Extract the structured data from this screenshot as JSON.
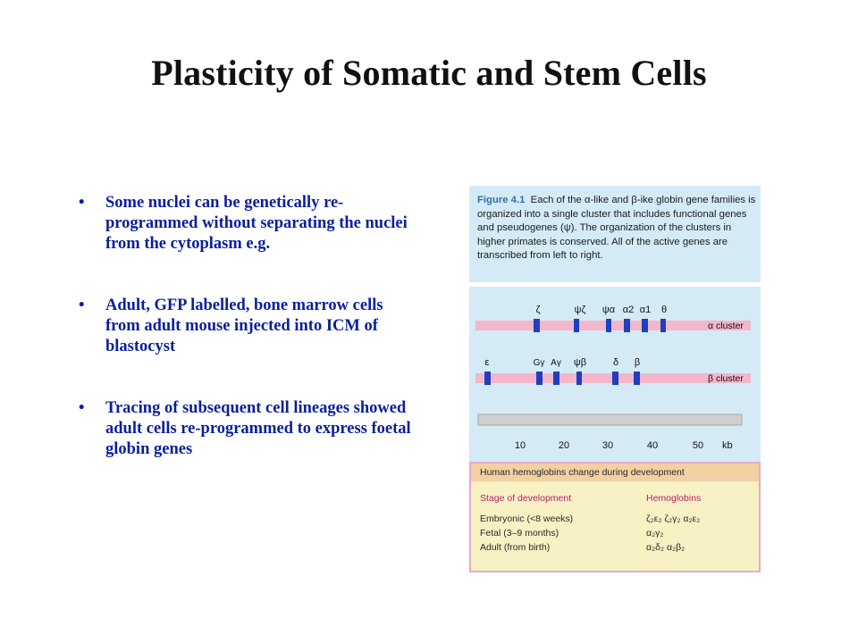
{
  "slide": {
    "title": "Plasticity of Somatic and Stem Cells",
    "bullets": [
      "Some nuclei can be genetically re-programmed without separating the nuclei from the cytoplasm e.g.",
      "Adult, GFP labelled, bone marrow cells from adult mouse injected into ICM of blastocyst",
      "Tracing of subsequent cell lineages showed adult cells re-programmed to express foetal globin genes"
    ],
    "bullet_symbol": "•"
  },
  "figure": {
    "caption_label": "Figure 4.1",
    "caption_text": "Each of the α-like and β-ike globin gene families is organized into a single cluster that includes functional genes and pseudogenes (ψ). The organization of the clusters in higher primates is conserved. All of the active genes are transcribed from left to right.",
    "alpha_cluster": {
      "label": "α cluster",
      "genes": [
        "ζ",
        "ψζ",
        "ψα",
        "α2",
        "α1",
        "θ"
      ]
    },
    "beta_cluster": {
      "label": "β cluster",
      "genes": [
        "ε",
        "Gγ",
        "Aγ",
        "ψβ",
        "δ",
        "β"
      ]
    },
    "scale": {
      "ticks": [
        "10",
        "20",
        "30",
        "40",
        "50"
      ],
      "unit": "kb"
    },
    "table": {
      "header": "Human hemoglobins change during development",
      "col1_header": "Stage of development",
      "col2_header": "Hemoglobins",
      "rows": [
        {
          "stage": "Embryonic (<8 weeks)",
          "hb": "ζ₂ε₂  ζ₂γ₂  α₂ε₂"
        },
        {
          "stage": "Fetal (3–9 months)",
          "hb": "α₂γ₂"
        },
        {
          "stage": "Adult (from birth)",
          "hb": "α₂δ₂  α₂β₂"
        }
      ]
    },
    "colors": {
      "panel_bg": "#d4ebf6",
      "gene_box": "#1f3fbf",
      "cluster_bar": "#f3b6ca",
      "scale_bar": "#cfcfcf",
      "table_bg": "#f8f1c4"
    }
  }
}
